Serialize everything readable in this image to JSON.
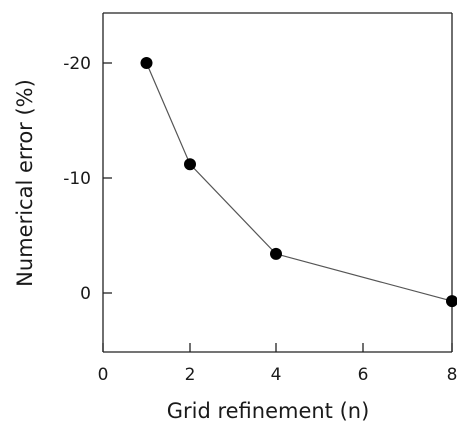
{
  "chart_data": {
    "type": "line",
    "xlabel": "Grid refinement (n)",
    "ylabel": "Numerical error (%)",
    "x_ticks": [
      "0",
      "2",
      "4",
      "6",
      "8"
    ],
    "y_ticks": [
      "-20",
      "-10",
      "0"
    ],
    "y_inverted": true,
    "xlim": [
      0,
      8
    ],
    "ylim": [
      5,
      -25
    ],
    "grid": false,
    "series": [
      {
        "x": [
          1,
          2,
          4,
          8
        ],
        "y": [
          -20,
          -11.2,
          -3.4,
          0.7
        ]
      }
    ],
    "colors": {
      "line": "#555555",
      "marker": "#000000",
      "axis": "#222222"
    }
  }
}
